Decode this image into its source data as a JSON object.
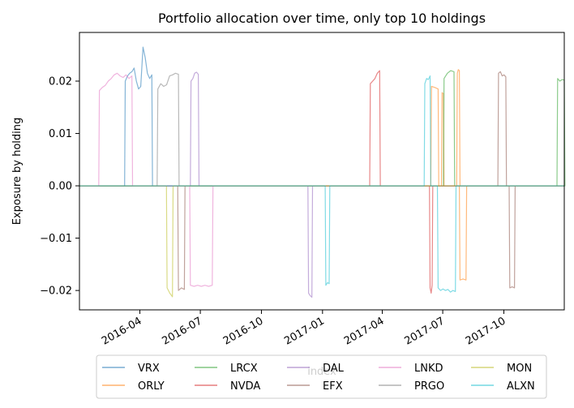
{
  "chart_data": {
    "type": "line",
    "title": "Portfolio allocation over time, only top 10 holdings",
    "xlabel": "index",
    "ylabel": "Exposure by holding",
    "x_range": [
      "2016-01-01",
      "2017-12-31"
    ],
    "ylim": [
      -0.0237,
      0.0293
    ],
    "yticks": [
      -0.02,
      -0.01,
      0.0,
      0.01,
      0.02
    ],
    "ytick_labels": [
      "−0.02",
      "−0.01",
      "0.00",
      "0.01",
      "0.02"
    ],
    "xticks": [
      "2016-04-01",
      "2016-07-01",
      "2016-10-01",
      "2017-01-01",
      "2017-04-01",
      "2017-07-01",
      "2017-10-01"
    ],
    "xtick_labels": [
      "2016-04",
      "2016-07",
      "2016-10",
      "2017-01",
      "2017-04",
      "2017-07",
      "2017-10"
    ],
    "grid": false,
    "legend_position": "lower-center",
    "series": [
      {
        "name": "VRX",
        "color": "#1f77b4",
        "segments": [
          {
            "start": "2016-03-10",
            "end": "2016-04-19",
            "values": [
              0.02,
              0.021,
              0.0215,
              0.0218,
              0.0225,
              0.02,
              0.0185,
              0.019,
              0.0265,
              0.0245,
              0.0215,
              0.0205,
              0.0212
            ]
          }
        ]
      },
      {
        "name": "ORLY",
        "color": "#ff7f0e",
        "segments": [
          {
            "start": "2017-06-14",
            "end": "2017-06-24",
            "values": [
              0.019,
              0.0188,
              0.0185
            ]
          },
          {
            "start": "2017-06-30",
            "end": "2017-07-02",
            "values": [
              0.0178,
              0.0176
            ]
          },
          {
            "start": "2017-07-23",
            "end": "2017-07-26",
            "values": [
              0.0215,
              0.0222,
              0.022
            ]
          },
          {
            "start": "2017-07-27",
            "end": "2017-08-05",
            "values": [
              -0.018,
              -0.0178,
              -0.018
            ]
          }
        ]
      },
      {
        "name": "LRCX",
        "color": "#2ca02c",
        "segments": [
          {
            "start": "2017-07-03",
            "end": "2017-07-18",
            "values": [
              0.0205,
              0.0215,
              0.022,
              0.0218
            ]
          },
          {
            "start": "2017-12-21",
            "end": "2017-12-31",
            "values": [
              0.0205,
              0.02,
              0.0203,
              0.0202
            ]
          }
        ]
      },
      {
        "name": "NVDA",
        "color": "#d62728",
        "segments": [
          {
            "start": "2017-03-14",
            "end": "2017-03-28",
            "values": [
              0.0195,
              0.02,
              0.0205,
              0.0215,
              0.022
            ]
          },
          {
            "start": "2017-06-12",
            "end": "2017-06-15",
            "values": [
              -0.0195,
              -0.0205,
              -0.019
            ]
          }
        ]
      },
      {
        "name": "DAL",
        "color": "#9467bd",
        "segments": [
          {
            "start": "2016-06-17",
            "end": "2016-06-28",
            "values": [
              0.02,
              0.0205,
              0.0215,
              0.0217,
              0.0213
            ]
          },
          {
            "start": "2016-12-11",
            "end": "2016-12-16",
            "values": [
              -0.0205,
              -0.021,
              -0.0213
            ]
          }
        ]
      },
      {
        "name": "EFX",
        "color": "#8c564b",
        "segments": [
          {
            "start": "2017-09-23",
            "end": "2017-10-04",
            "values": [
              0.0215,
              0.0218,
              0.021,
              0.0212,
              0.0208
            ]
          },
          {
            "start": "2016-05-29",
            "end": "2016-06-07",
            "values": [
              -0.02,
              -0.0195,
              -0.0198
            ]
          },
          {
            "start": "2017-10-10",
            "end": "2017-10-17",
            "values": [
              -0.0195,
              -0.0193,
              -0.0195
            ]
          }
        ]
      },
      {
        "name": "LNKD",
        "color": "#e377c2",
        "segments": [
          {
            "start": "2016-01-31",
            "end": "2016-03-20",
            "values": [
              0.0182,
              0.0188,
              0.0192,
              0.02,
              0.0205,
              0.0212,
              0.0215,
              0.021,
              0.0207,
              0.0212,
              0.0205,
              0.021
            ]
          },
          {
            "start": "2016-06-16",
            "end": "2016-07-19",
            "values": [
              -0.019,
              -0.0192,
              -0.019,
              -0.0192,
              -0.019,
              -0.0192,
              -0.019
            ]
          }
        ]
      },
      {
        "name": "PRGO",
        "color": "#7f7f7f",
        "segments": [
          {
            "start": "2016-04-28",
            "end": "2016-05-29",
            "values": [
              0.0185,
              0.0195,
              0.019,
              0.0193,
              0.021,
              0.0212,
              0.0215,
              0.0213
            ]
          }
        ]
      },
      {
        "name": "MON",
        "color": "#bcbd22",
        "segments": [
          {
            "start": "2016-05-12",
            "end": "2016-05-20",
            "values": [
              -0.0195,
              -0.0205,
              -0.0212
            ]
          }
        ]
      },
      {
        "name": "ALXN",
        "color": "#17becf",
        "segments": [
          {
            "start": "2017-01-06",
            "end": "2017-01-11",
            "values": [
              -0.019,
              -0.0185,
              -0.0187
            ]
          },
          {
            "start": "2017-06-04",
            "end": "2017-06-12",
            "values": [
              0.0195,
              0.0205,
              0.0203,
              0.021
            ]
          },
          {
            "start": "2017-06-24",
            "end": "2017-07-20",
            "values": [
              -0.0195,
              -0.02,
              -0.0197,
              -0.02,
              -0.0198,
              -0.0203,
              -0.02,
              -0.0202
            ]
          }
        ]
      }
    ]
  }
}
